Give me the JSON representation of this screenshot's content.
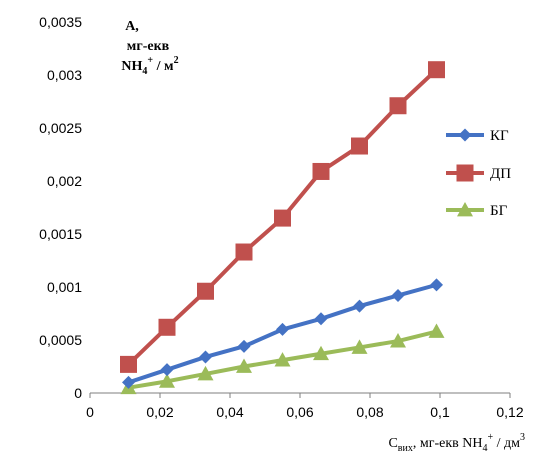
{
  "chart_data": {
    "type": "line",
    "x": [
      0.011,
      0.022,
      0.033,
      0.044,
      0.055,
      0.066,
      0.077,
      0.088,
      0.099
    ],
    "series": [
      {
        "name": "КГ",
        "color": "#4472C4",
        "marker": "diamond",
        "values": [
          0.0001,
          0.00022,
          0.00034,
          0.00044,
          0.0006,
          0.0007,
          0.00082,
          0.00092,
          0.00102
        ]
      },
      {
        "name": "ДП",
        "color": "#C0504D",
        "marker": "square",
        "values": [
          0.00027,
          0.00062,
          0.00096,
          0.00133,
          0.00165,
          0.00209,
          0.00233,
          0.00271,
          0.00305
        ]
      },
      {
        "name": "БГ",
        "color": "#9BBB59",
        "marker": "triangle",
        "values": [
          5e-05,
          0.00011,
          0.00018,
          0.00025,
          0.00031,
          0.00037,
          0.00043,
          0.00049,
          0.00058
        ]
      }
    ],
    "xlim": [
      0,
      0.12
    ],
    "ylim": [
      0,
      0.0035
    ],
    "x_ticks": [
      0,
      0.02,
      0.04,
      0.06,
      0.08,
      0.1,
      0.12
    ],
    "x_tick_labels": [
      "0",
      "0,02",
      "0,04",
      "0,06",
      "0,08",
      "0,1",
      "0,12"
    ],
    "y_ticks": [
      0,
      0.0005,
      0.001,
      0.0015,
      0.002,
      0.0025,
      0.003,
      0.0035
    ],
    "y_tick_labels": [
      "0",
      "0,0005",
      "0,001",
      "0,0015",
      "0,002",
      "0,0025",
      "0,003",
      "0,0035"
    ],
    "grid": false,
    "legend_position": "right",
    "ylabel": {
      "line1": "А,",
      "line2": "мг-екв",
      "line3_main": "NH",
      "line3_sub": "4",
      "line3_sup": "+",
      "line3_unit": " / м",
      "line3_unit_sup": "2"
    },
    "xlabel": {
      "main": "C",
      "sub": "вих",
      "rest": ", мг-екв NH",
      "sub2": "4",
      "sup": "+",
      "unit": " / дм",
      "unit_sup": "3"
    }
  }
}
